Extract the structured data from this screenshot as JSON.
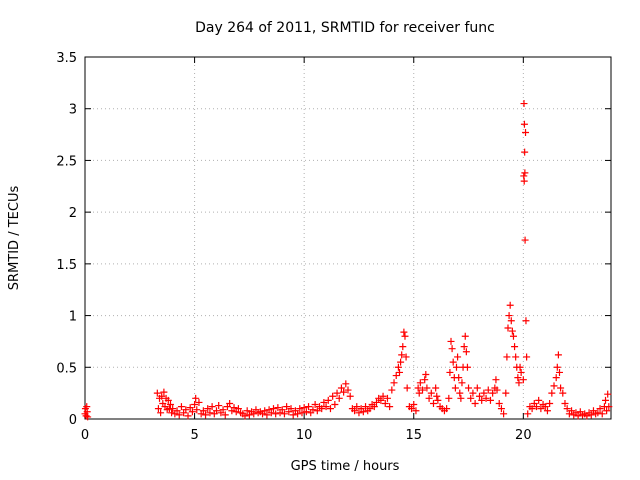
{
  "chart_data": {
    "type": "scatter",
    "title": "Day 264 of 2011, SRMTID for receiver func",
    "xlabel": "GPS time / hours",
    "ylabel": "SRMTID / TECUs",
    "xlim": [
      0,
      24
    ],
    "ylim": [
      0,
      3.5
    ],
    "grid": true,
    "marker": "+",
    "color": "#ff0000",
    "xticks": [
      0,
      5,
      10,
      15,
      20
    ],
    "xtick_labels": [
      "0",
      "5",
      "10",
      "15",
      "20"
    ],
    "yticks": [
      0,
      0.5,
      1,
      1.5,
      2,
      2.5,
      3,
      3.5
    ],
    "ytick_labels": [
      "0",
      "0.5",
      "1",
      "1.5",
      "2",
      "2.5",
      "3",
      "3.5"
    ],
    "series": [
      {
        "name": "SRMTID",
        "points": [
          [
            0.0,
            0.05
          ],
          [
            0.02,
            0.1
          ],
          [
            0.05,
            0.03
          ],
          [
            0.08,
            0.12
          ],
          [
            0.1,
            0.07
          ],
          [
            0.12,
            0.02
          ],
          [
            3.3,
            0.25
          ],
          [
            3.35,
            0.1
          ],
          [
            3.4,
            0.2
          ],
          [
            3.45,
            0.06
          ],
          [
            3.5,
            0.22
          ],
          [
            3.55,
            0.15
          ],
          [
            3.6,
            0.26
          ],
          [
            3.65,
            0.12
          ],
          [
            3.7,
            0.2
          ],
          [
            3.75,
            0.09
          ],
          [
            3.8,
            0.18
          ],
          [
            3.85,
            0.1
          ],
          [
            3.9,
            0.14
          ],
          [
            3.95,
            0.06
          ],
          [
            4.0,
            0.1
          ],
          [
            4.1,
            0.05
          ],
          [
            4.2,
            0.08
          ],
          [
            4.3,
            0.04
          ],
          [
            4.4,
            0.12
          ],
          [
            4.5,
            0.06
          ],
          [
            4.6,
            0.09
          ],
          [
            4.7,
            0.03
          ],
          [
            4.8,
            0.11
          ],
          [
            4.9,
            0.07
          ],
          [
            5.0,
            0.14
          ],
          [
            5.05,
            0.2
          ],
          [
            5.1,
            0.09
          ],
          [
            5.2,
            0.16
          ],
          [
            5.3,
            0.05
          ],
          [
            5.4,
            0.08
          ],
          [
            5.5,
            0.04
          ],
          [
            5.6,
            0.1
          ],
          [
            5.7,
            0.06
          ],
          [
            5.8,
            0.12
          ],
          [
            5.9,
            0.05
          ],
          [
            6.0,
            0.08
          ],
          [
            6.1,
            0.13
          ],
          [
            6.2,
            0.06
          ],
          [
            6.3,
            0.09
          ],
          [
            6.4,
            0.04
          ],
          [
            6.5,
            0.12
          ],
          [
            6.6,
            0.15
          ],
          [
            6.7,
            0.08
          ],
          [
            6.8,
            0.11
          ],
          [
            6.9,
            0.07
          ],
          [
            7.0,
            0.1
          ],
          [
            7.1,
            0.06
          ],
          [
            7.2,
            0.05
          ],
          [
            7.3,
            0.03
          ],
          [
            7.4,
            0.08
          ],
          [
            7.5,
            0.04
          ],
          [
            7.6,
            0.07
          ],
          [
            7.7,
            0.05
          ],
          [
            7.8,
            0.09
          ],
          [
            7.9,
            0.06
          ],
          [
            8.0,
            0.07
          ],
          [
            8.1,
            0.05
          ],
          [
            8.2,
            0.08
          ],
          [
            8.3,
            0.04
          ],
          [
            8.4,
            0.09
          ],
          [
            8.5,
            0.06
          ],
          [
            8.6,
            0.1
          ],
          [
            8.7,
            0.05
          ],
          [
            8.8,
            0.11
          ],
          [
            8.9,
            0.06
          ],
          [
            9.0,
            0.09
          ],
          [
            9.1,
            0.05
          ],
          [
            9.2,
            0.12
          ],
          [
            9.3,
            0.07
          ],
          [
            9.4,
            0.1
          ],
          [
            9.5,
            0.04
          ],
          [
            9.6,
            0.08
          ],
          [
            9.7,
            0.05
          ],
          [
            9.8,
            0.1
          ],
          [
            9.9,
            0.06
          ],
          [
            10.0,
            0.11
          ],
          [
            10.1,
            0.07
          ],
          [
            10.2,
            0.12
          ],
          [
            10.3,
            0.06
          ],
          [
            10.4,
            0.09
          ],
          [
            10.5,
            0.14
          ],
          [
            10.6,
            0.08
          ],
          [
            10.7,
            0.12
          ],
          [
            10.8,
            0.1
          ],
          [
            10.9,
            0.16
          ],
          [
            11.0,
            0.12
          ],
          [
            11.1,
            0.18
          ],
          [
            11.2,
            0.1
          ],
          [
            11.3,
            0.22
          ],
          [
            11.4,
            0.14
          ],
          [
            11.5,
            0.25
          ],
          [
            11.6,
            0.2
          ],
          [
            11.7,
            0.3
          ],
          [
            11.8,
            0.26
          ],
          [
            11.9,
            0.34
          ],
          [
            12.0,
            0.28
          ],
          [
            12.1,
            0.22
          ],
          [
            12.2,
            0.1
          ],
          [
            12.3,
            0.08
          ],
          [
            12.4,
            0.12
          ],
          [
            12.5,
            0.06
          ],
          [
            12.6,
            0.1
          ],
          [
            12.7,
            0.07
          ],
          [
            12.8,
            0.12
          ],
          [
            12.9,
            0.08
          ],
          [
            13.0,
            0.1
          ],
          [
            13.1,
            0.14
          ],
          [
            13.2,
            0.12
          ],
          [
            13.3,
            0.16
          ],
          [
            13.4,
            0.2
          ],
          [
            13.5,
            0.18
          ],
          [
            13.6,
            0.22
          ],
          [
            13.7,
            0.15
          ],
          [
            13.8,
            0.2
          ],
          [
            13.9,
            0.12
          ],
          [
            14.0,
            0.28
          ],
          [
            14.1,
            0.35
          ],
          [
            14.2,
            0.42
          ],
          [
            14.3,
            0.5
          ],
          [
            14.35,
            0.45
          ],
          [
            14.4,
            0.55
          ],
          [
            14.45,
            0.62
          ],
          [
            14.5,
            0.7
          ],
          [
            14.55,
            0.84
          ],
          [
            14.6,
            0.8
          ],
          [
            14.65,
            0.6
          ],
          [
            14.7,
            0.3
          ],
          [
            14.8,
            0.12
          ],
          [
            14.9,
            0.1
          ],
          [
            15.0,
            0.14
          ],
          [
            15.1,
            0.08
          ],
          [
            15.2,
            0.3
          ],
          [
            15.25,
            0.25
          ],
          [
            15.3,
            0.35
          ],
          [
            15.4,
            0.28
          ],
          [
            15.5,
            0.38
          ],
          [
            15.55,
            0.43
          ],
          [
            15.6,
            0.3
          ],
          [
            15.7,
            0.2
          ],
          [
            15.8,
            0.25
          ],
          [
            15.9,
            0.15
          ],
          [
            16.0,
            0.3
          ],
          [
            16.05,
            0.22
          ],
          [
            16.1,
            0.18
          ],
          [
            16.2,
            0.12
          ],
          [
            16.3,
            0.1
          ],
          [
            16.4,
            0.08
          ],
          [
            16.5,
            0.1
          ],
          [
            16.6,
            0.2
          ],
          [
            16.65,
            0.45
          ],
          [
            16.7,
            0.75
          ],
          [
            16.75,
            0.68
          ],
          [
            16.8,
            0.55
          ],
          [
            16.85,
            0.4
          ],
          [
            16.9,
            0.3
          ],
          [
            16.95,
            0.5
          ],
          [
            17.0,
            0.6
          ],
          [
            17.05,
            0.4
          ],
          [
            17.1,
            0.25
          ],
          [
            17.15,
            0.2
          ],
          [
            17.2,
            0.35
          ],
          [
            17.25,
            0.5
          ],
          [
            17.3,
            0.7
          ],
          [
            17.35,
            0.8
          ],
          [
            17.4,
            0.65
          ],
          [
            17.45,
            0.5
          ],
          [
            17.5,
            0.3
          ],
          [
            17.6,
            0.2
          ],
          [
            17.7,
            0.25
          ],
          [
            17.8,
            0.15
          ],
          [
            17.9,
            0.3
          ],
          [
            18.0,
            0.22
          ],
          [
            18.1,
            0.18
          ],
          [
            18.2,
            0.25
          ],
          [
            18.3,
            0.2
          ],
          [
            18.4,
            0.28
          ],
          [
            18.5,
            0.18
          ],
          [
            18.6,
            0.25
          ],
          [
            18.7,
            0.3
          ],
          [
            18.75,
            0.38
          ],
          [
            18.8,
            0.28
          ],
          [
            18.9,
            0.15
          ],
          [
            19.0,
            0.1
          ],
          [
            19.1,
            0.05
          ],
          [
            19.2,
            0.25
          ],
          [
            19.25,
            0.6
          ],
          [
            19.3,
            0.88
          ],
          [
            19.35,
            1.0
          ],
          [
            19.4,
            1.1
          ],
          [
            19.45,
            0.95
          ],
          [
            19.5,
            0.85
          ],
          [
            19.55,
            0.8
          ],
          [
            19.6,
            0.7
          ],
          [
            19.65,
            0.6
          ],
          [
            19.7,
            0.5
          ],
          [
            19.75,
            0.4
          ],
          [
            19.8,
            0.35
          ],
          [
            19.85,
            0.5
          ],
          [
            19.9,
            0.45
          ],
          [
            20.0,
            0.38
          ],
          [
            20.02,
            2.35
          ],
          [
            20.03,
            3.05
          ],
          [
            20.04,
            2.3
          ],
          [
            20.05,
            2.85
          ],
          [
            20.06,
            2.58
          ],
          [
            20.07,
            2.38
          ],
          [
            20.08,
            1.73
          ],
          [
            20.1,
            2.77
          ],
          [
            20.12,
            0.95
          ],
          [
            20.15,
            0.6
          ],
          [
            20.2,
            0.05
          ],
          [
            20.3,
            0.12
          ],
          [
            20.4,
            0.1
          ],
          [
            20.5,
            0.15
          ],
          [
            20.6,
            0.12
          ],
          [
            20.7,
            0.18
          ],
          [
            20.8,
            0.1
          ],
          [
            20.9,
            0.14
          ],
          [
            21.0,
            0.12
          ],
          [
            21.1,
            0.08
          ],
          [
            21.2,
            0.15
          ],
          [
            21.3,
            0.25
          ],
          [
            21.4,
            0.32
          ],
          [
            21.5,
            0.4
          ],
          [
            21.55,
            0.5
          ],
          [
            21.6,
            0.62
          ],
          [
            21.65,
            0.45
          ],
          [
            21.7,
            0.3
          ],
          [
            21.8,
            0.25
          ],
          [
            21.9,
            0.15
          ],
          [
            22.0,
            0.1
          ],
          [
            22.1,
            0.05
          ],
          [
            22.2,
            0.08
          ],
          [
            22.3,
            0.04
          ],
          [
            22.4,
            0.06
          ],
          [
            22.5,
            0.03
          ],
          [
            22.6,
            0.07
          ],
          [
            22.7,
            0.04
          ],
          [
            22.8,
            0.05
          ],
          [
            22.9,
            0.03
          ],
          [
            23.0,
            0.06
          ],
          [
            23.1,
            0.04
          ],
          [
            23.2,
            0.08
          ],
          [
            23.3,
            0.05
          ],
          [
            23.4,
            0.06
          ],
          [
            23.5,
            0.1
          ],
          [
            23.6,
            0.05
          ],
          [
            23.7,
            0.12
          ],
          [
            23.75,
            0.18
          ],
          [
            23.8,
            0.08
          ],
          [
            23.85,
            0.24
          ],
          [
            23.9,
            0.12
          ]
        ]
      }
    ]
  }
}
